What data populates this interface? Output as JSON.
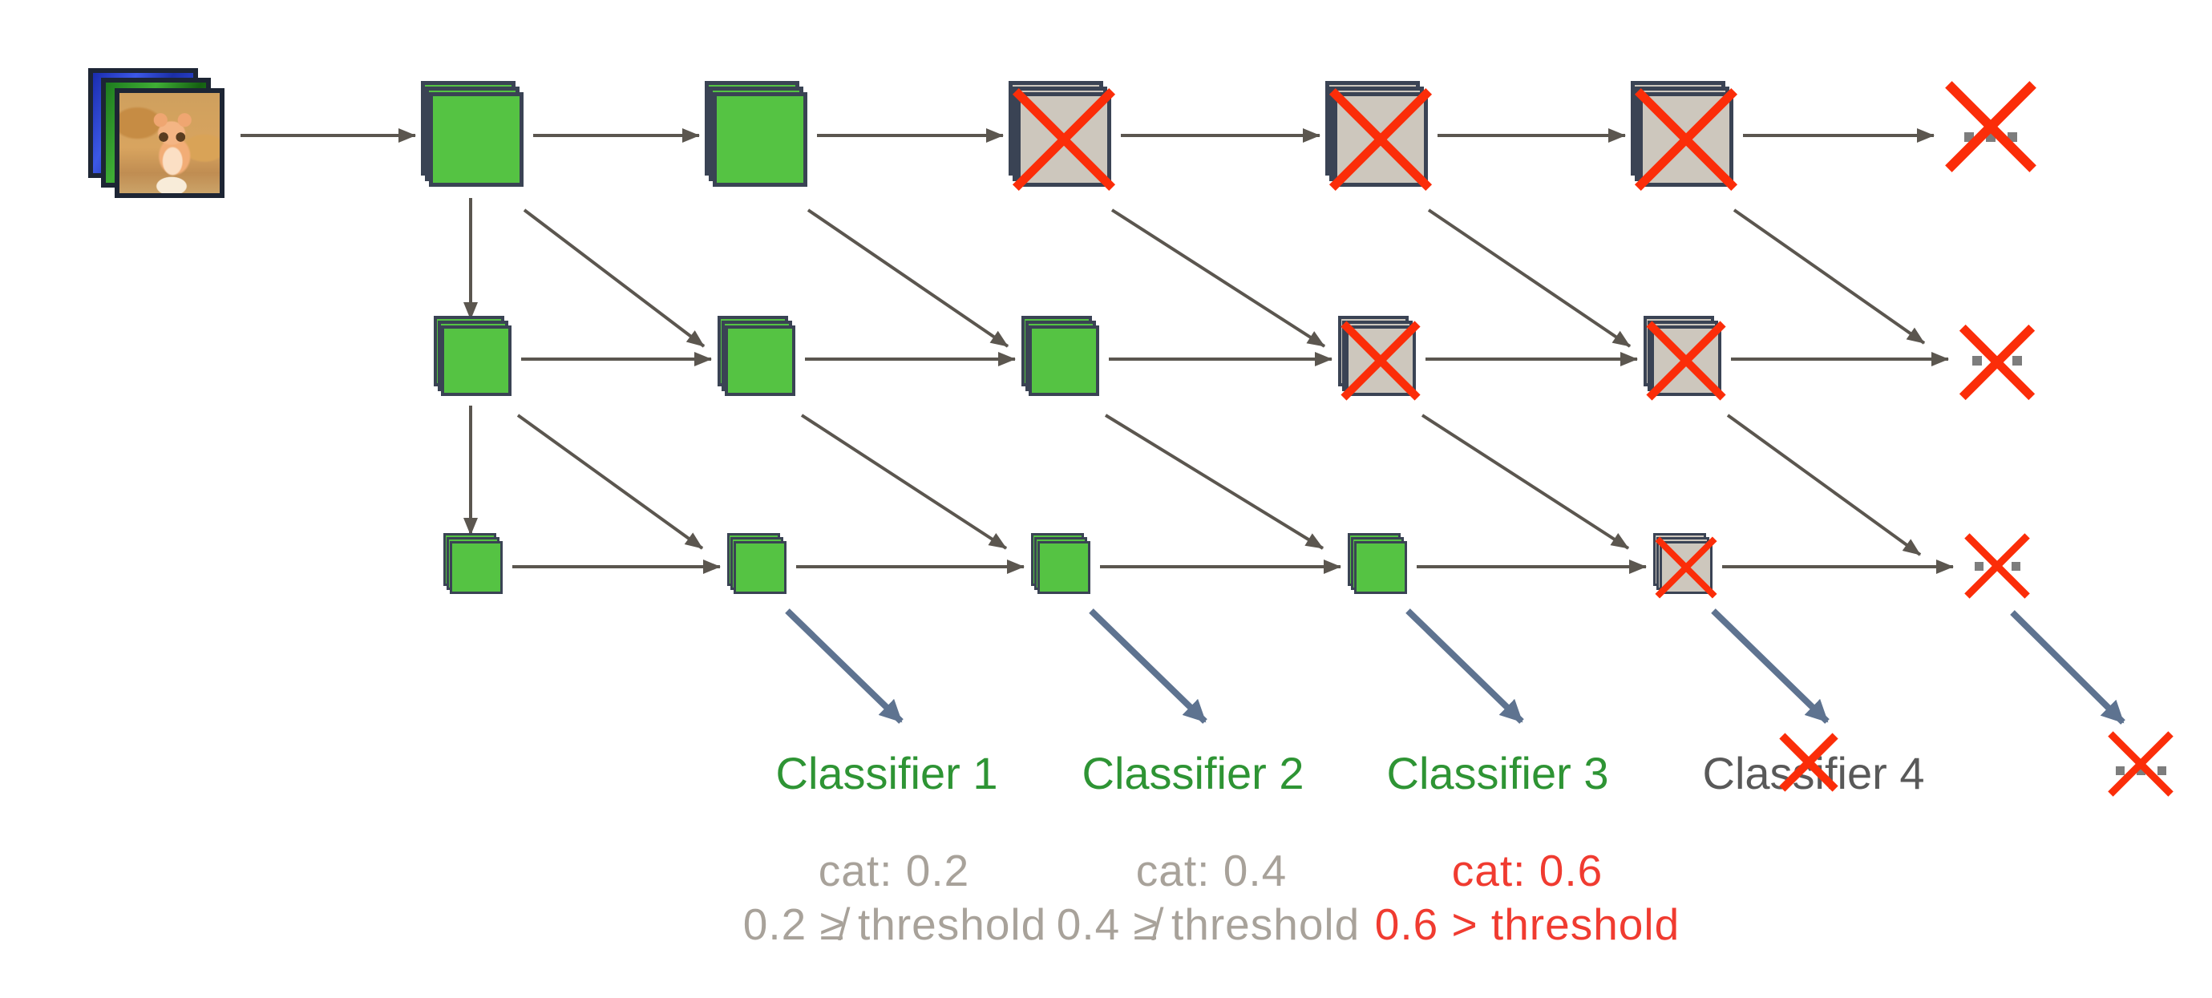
{
  "diagram": {
    "title_hint": "multi-scale network with early-exit classifiers",
    "network": {
      "rows": [
        {
          "scale": 1,
          "cells": [
            "green",
            "green",
            "crossed",
            "crossed",
            "crossed",
            "x"
          ]
        },
        {
          "scale": 2,
          "cells": [
            "green",
            "green",
            "green",
            "crossed",
            "crossed",
            "x"
          ]
        },
        {
          "scale": 3,
          "cells": [
            "green",
            "green",
            "green",
            "green",
            "crossed",
            "x"
          ]
        }
      ]
    },
    "classifiers": [
      {
        "label": "Classifier 1",
        "status": "active"
      },
      {
        "label": "Classifier 2",
        "status": "active"
      },
      {
        "label": "Classifier 3",
        "status": "active"
      },
      {
        "label": "Classifier 4",
        "status": "crossed-out"
      }
    ],
    "outputs": [
      {
        "prob": "cat: 0.2",
        "check": "0.2 ≱ threshold",
        "status": "below-threshold"
      },
      {
        "prob": "cat: 0.4",
        "check": "0.4 ≱ threshold",
        "status": "below-threshold"
      },
      {
        "prob": "cat: 0.6",
        "check": "0.6 > threshold",
        "status": "above-threshold"
      }
    ],
    "colors": {
      "green": "#55c343",
      "beige": "#cdc7bd",
      "border": "#3a4354",
      "red": "#fb2d09",
      "arrow": "#5b564f",
      "blue": "#5e7390",
      "dot": "#7d7d7d",
      "clfGreen": "#2e9434",
      "clfGray": "#595959",
      "txtGray": "#a8a29a",
      "txtRed": "#f03b30"
    }
  }
}
